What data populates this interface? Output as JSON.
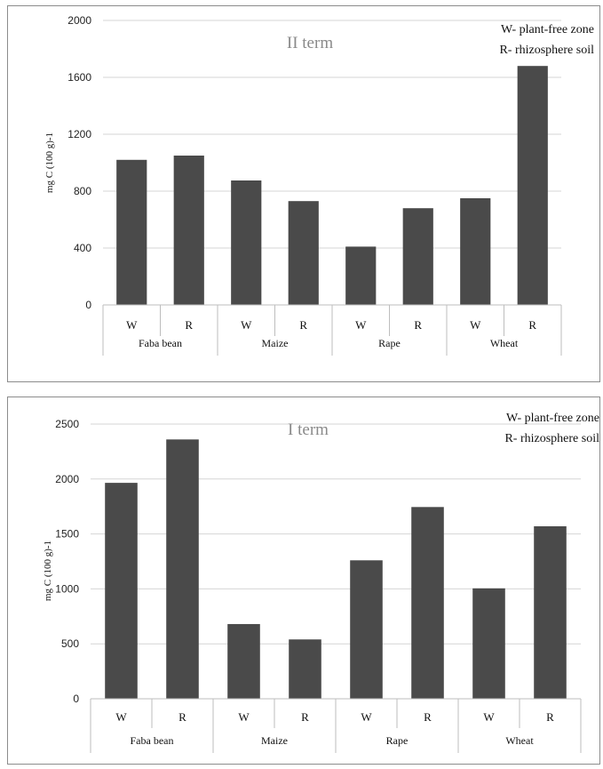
{
  "chart_data": [
    {
      "type": "bar",
      "title": "II term",
      "ylabel": "mg C (100 g)-1",
      "ylim": [
        0,
        2000
      ],
      "yticks": [
        0,
        400,
        800,
        1200,
        1600,
        2000
      ],
      "grid": true,
      "legend": [
        "W- plant-free zone",
        "R- rhizosphere soil"
      ],
      "legend_position": "top-right",
      "bar_color": "#4a4a4a",
      "groups": [
        "Faba bean",
        "Maize",
        "Rape",
        "Wheat"
      ],
      "categories": [
        "W",
        "R",
        "W",
        "R",
        "W",
        "R",
        "W",
        "R"
      ],
      "values": [
        1020,
        1050,
        875,
        730,
        410,
        680,
        750,
        1680
      ]
    },
    {
      "type": "bar",
      "title": "I term",
      "ylabel": "mg C (100 g)-1",
      "ylim": [
        0,
        2500
      ],
      "yticks": [
        0,
        500,
        1000,
        1500,
        2000,
        2500
      ],
      "grid": true,
      "legend": [
        "W- plant-free zone",
        "R- rhizosphere soil"
      ],
      "legend_position": "top-right",
      "bar_color": "#4a4a4a",
      "groups": [
        "Faba bean",
        "Maize",
        "Rape",
        "Wheat"
      ],
      "categories": [
        "W",
        "R",
        "W",
        "R",
        "W",
        "R",
        "W",
        "R"
      ],
      "values": [
        1965,
        2360,
        680,
        540,
        1260,
        1745,
        1005,
        1570
      ]
    }
  ]
}
